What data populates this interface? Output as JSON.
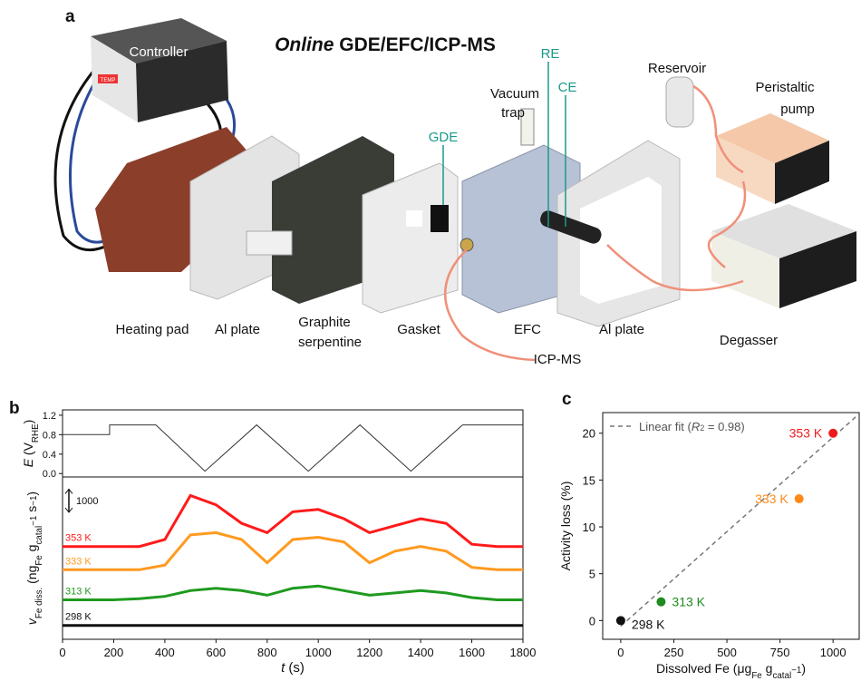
{
  "panel_a": {
    "letter": "a",
    "title_italic": "Online",
    "title": "GDE/EFC/ICP-MS",
    "controller": "Controller",
    "controller_button": "TEMP",
    "reservoir": "Reservoir",
    "pump": [
      "Peristaltic",
      "pump"
    ],
    "vacuum_trap": [
      "Vacuum",
      "trap"
    ],
    "gde": "GDE",
    "re": "RE",
    "ce": "CE",
    "heating_pad": "Heating pad",
    "al_plate_1": "Al plate",
    "graphite": [
      "Graphite",
      "serpentine"
    ],
    "gasket": "Gasket",
    "efc": "EFC",
    "al_plate_2": "Al plate",
    "degasser": "Degasser",
    "icp_ms": "ICP-MS"
  },
  "chart_data": [
    {
      "type": "line",
      "panel_letter": "b",
      "y_label": [
        {
          "text": "E",
          "style": "italic"
        },
        {
          "text": " (V",
          "style": ""
        },
        {
          "text": "RHE",
          "style": "sub"
        },
        {
          "text": ")",
          "style": ""
        }
      ],
      "x": [
        0,
        184,
        184,
        365,
        557,
        759,
        961,
        1163,
        1362,
        1564,
        1800
      ],
      "series": [
        {
          "color": "#333333",
          "values": [
            0.8,
            0.8,
            1.0,
            1.0,
            0.05,
            1.0,
            0.05,
            1.0,
            0.05,
            1.0,
            1.0
          ]
        }
      ],
      "xlim": [
        0,
        1800
      ],
      "ylim": [
        -0.07,
        1.31
      ],
      "yticks": [
        {
          "value": 0,
          "label": "0.0"
        },
        {
          "value": 0.4,
          "label": "0.4"
        },
        {
          "value": 0.8,
          "label": "0.8"
        },
        {
          "value": 1.2,
          "label": "1.2"
        }
      ]
    },
    {
      "type": "line",
      "x_label": [
        {
          "text": "t",
          "style": "italic"
        },
        {
          "text": " (s)",
          "style": ""
        }
      ],
      "y_label": [
        {
          "text": "v",
          "style": "italic"
        },
        {
          "text": "Fe diss.",
          "style": "sub"
        },
        {
          "text": " (ng",
          "style": ""
        },
        {
          "text": "Fe",
          "style": "sub"
        },
        {
          "text": " g",
          "style": ""
        },
        {
          "text": "catal",
          "style": "sub"
        },
        {
          "text": "−1",
          "style": "sup"
        },
        {
          "text": " s",
          "style": ""
        },
        {
          "text": "−1",
          "style": "sup"
        },
        {
          "text": ")",
          "style": ""
        }
      ],
      "scale_bar": 1000,
      "x": [
        0,
        100,
        200,
        300,
        400,
        500,
        600,
        700,
        800,
        900,
        1000,
        1100,
        1200,
        1300,
        1400,
        1500,
        1600,
        1700,
        1800
      ],
      "series": [
        {
          "name": "353 K",
          "color": "#ff1a1a",
          "values": [
            4000,
            4000,
            4000,
            4000,
            4300,
            6200,
            5800,
            5000,
            4600,
            5500,
            5600,
            5200,
            4600,
            4900,
            5200,
            5000,
            4100,
            4000,
            4000
          ]
        },
        {
          "name": "333 K",
          "color": "#ff9a1f",
          "values": [
            3000,
            3000,
            3000,
            3000,
            3200,
            4500,
            4600,
            4300,
            3300,
            4300,
            4400,
            4200,
            3300,
            3800,
            4000,
            3800,
            3100,
            3000,
            3000
          ]
        },
        {
          "name": "313 K",
          "color": "#1f9a1f",
          "values": [
            1700,
            1700,
            1700,
            1750,
            1850,
            2100,
            2200,
            2100,
            1900,
            2200,
            2300,
            2100,
            1900,
            2000,
            2100,
            2000,
            1800,
            1700,
            1700
          ]
        },
        {
          "name": "298 K",
          "color": "#111111",
          "values": [
            600,
            600,
            600,
            600,
            600,
            600,
            600,
            600,
            600,
            600,
            600,
            600,
            600,
            600,
            600,
            600,
            600,
            600,
            600
          ]
        }
      ],
      "xlim": [
        0,
        1800
      ],
      "ylim": [
        0,
        7000
      ],
      "xticks": [
        0,
        200,
        400,
        600,
        800,
        1000,
        1200,
        1400,
        1600,
        1800
      ]
    },
    {
      "type": "scatter",
      "panel_letter": "c",
      "x_label": [
        {
          "text": "Dissolved Fe (μg",
          "style": ""
        },
        {
          "text": "Fe",
          "style": "sub"
        },
        {
          "text": " g",
          "style": ""
        },
        {
          "text": "catal",
          "style": "sub"
        },
        {
          "text": "−1",
          "style": "sup"
        },
        {
          "text": ")",
          "style": ""
        }
      ],
      "y_label": [
        {
          "text": "Activity loss (%)",
          "style": ""
        }
      ],
      "fit_label": [
        {
          "text": "Linear fit (",
          "style": ""
        },
        {
          "text": "R",
          "style": "italic"
        },
        {
          "text": "2",
          "style": "sup"
        },
        {
          "text": " = 0.98)",
          "style": ""
        }
      ],
      "fit": {
        "x": [
          0,
          1120
        ],
        "values": [
          -0.6,
          22
        ]
      },
      "series": [
        {
          "name": "298 K",
          "color": "#111111",
          "x": [
            0
          ],
          "values": [
            0
          ]
        },
        {
          "name": "313 K",
          "color": "#1f8a1f",
          "x": [
            190
          ],
          "values": [
            2
          ]
        },
        {
          "name": "333 K",
          "color": "#ff8a1a",
          "x": [
            840
          ],
          "values": [
            13
          ]
        },
        {
          "name": "353 K",
          "color": "#ee1c1c",
          "x": [
            1000
          ],
          "values": [
            20
          ]
        }
      ],
      "xlim": [
        -85,
        1123
      ],
      "ylim": [
        -2,
        22.2
      ],
      "xticks": [
        0,
        250,
        500,
        750,
        1000
      ],
      "yticks": [
        0,
        5,
        10,
        15,
        20
      ]
    }
  ]
}
